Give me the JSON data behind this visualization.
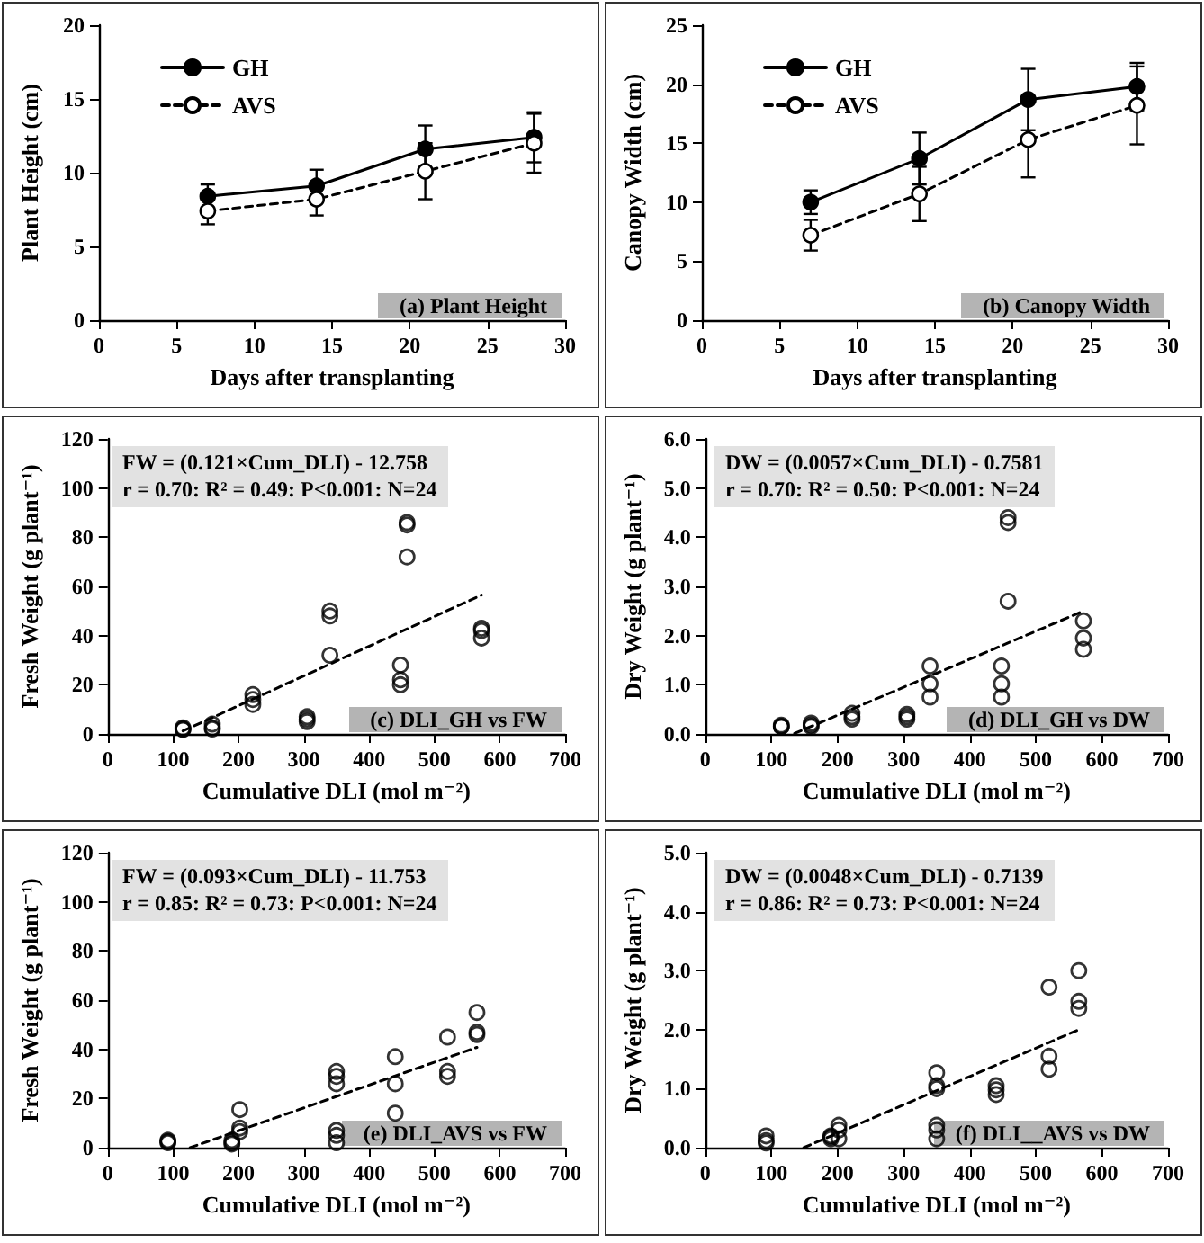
{
  "chart_data": [
    {
      "type": "line",
      "xlabel": "Days after transplanting",
      "ylabel": "Plant Height (cm)",
      "marker": "circle",
      "legend": "top left",
      "xlim": [
        0,
        30
      ],
      "xticks": [
        0,
        5,
        10,
        15,
        20,
        25,
        30
      ],
      "ylim": [
        0,
        20
      ],
      "yticks": [
        0,
        5,
        10,
        15,
        20
      ],
      "annotations": [
        "(a) Plant Height"
      ],
      "series": [
        {
          "name": "GH",
          "color": "#000000",
          "line_style": "solid",
          "x": [
            7,
            14,
            21,
            28
          ],
          "values": [
            8.4,
            9.1,
            11.6,
            12.4
          ],
          "errors": [
            0.8,
            1.1,
            1.6,
            1.7
          ]
        },
        {
          "name": "AVS",
          "color": "#000000",
          "line_style": "dashed",
          "x": [
            7,
            14,
            21,
            28
          ],
          "values": [
            7.4,
            8.2,
            10.1,
            12.0
          ],
          "errors": [
            0.9,
            1.1,
            1.9,
            2.0
          ]
        }
      ]
    },
    {
      "type": "line",
      "xlabel": "Days after transplanting",
      "ylabel": "Canopy Width (cm)",
      "marker": "circle",
      "legend": "top left",
      "xlim": [
        0,
        30
      ],
      "xticks": [
        0,
        5,
        10,
        15,
        20,
        25,
        30
      ],
      "ylim": [
        0,
        25
      ],
      "yticks": [
        0,
        5,
        10,
        15,
        20,
        25
      ],
      "annotations": [
        "(b) Canopy Width"
      ],
      "series": [
        {
          "name": "GH",
          "color": "#000000",
          "line_style": "solid",
          "x": [
            7,
            14,
            21,
            28
          ],
          "values": [
            10.0,
            13.7,
            18.7,
            19.8
          ],
          "errors": [
            1.0,
            2.2,
            2.6,
            2.0
          ]
        },
        {
          "name": "AVS",
          "color": "#000000",
          "line_style": "dashed",
          "x": [
            7,
            14,
            21,
            28
          ],
          "values": [
            7.2,
            10.7,
            15.3,
            18.2
          ],
          "errors": [
            1.3,
            2.3,
            3.2,
            3.3
          ]
        }
      ]
    },
    {
      "type": "scatter",
      "xlabel": "Cumulative DLI (mol m⁻²)",
      "ylabel": "Fresh Weight (g plant⁻¹)",
      "marker": "circle",
      "xlim": [
        0,
        700
      ],
      "xticks": [
        0,
        100,
        200,
        300,
        400,
        500,
        600,
        700
      ],
      "ylim": [
        0,
        120
      ],
      "yticks": [
        0,
        20,
        40,
        60,
        80,
        100,
        120
      ],
      "annotations": [
        "FW = (0.121×Cum_DLI) - 12.758",
        "r = 0.70: R² = 0.49: P<0.001: N=24",
        "(c) DLI_GH vs FW"
      ],
      "series": [
        {
          "color": "#000000",
          "x": [
            115,
            115,
            115,
            160,
            160,
            160,
            222,
            222,
            222,
            305,
            305,
            305,
            340,
            340,
            340,
            448,
            448,
            448,
            458,
            458,
            458,
            572,
            572,
            572
          ],
          "values": [
            2.5,
            2,
            1.8,
            4,
            2.5,
            2,
            16,
            14,
            12,
            7,
            6,
            5,
            50,
            48,
            32,
            28,
            22,
            20,
            86,
            85,
            72,
            43,
            42,
            39
          ]
        },
        {
          "type": "line",
          "color": "#000000",
          "line_style": "dashed",
          "marker": "none",
          "x": [
            115,
            572
          ],
          "values": [
            1.2,
            56.5
          ]
        }
      ]
    },
    {
      "type": "scatter",
      "xlabel": "Cumulative DLI (mol m⁻²)",
      "ylabel": "Dry Weight (g plant⁻¹)",
      "marker": "circle",
      "xlim": [
        0,
        700
      ],
      "xticks": [
        0,
        100,
        200,
        300,
        400,
        500,
        600,
        700
      ],
      "ylim": [
        0,
        6
      ],
      "yticks": [
        {
          "value": 0,
          "label": "0.0"
        },
        {
          "value": 1,
          "label": "1.0"
        },
        {
          "value": 2,
          "label": "2.0"
        },
        {
          "value": 3,
          "label": "3.0"
        },
        {
          "value": 4,
          "label": "4.0"
        },
        {
          "value": 5,
          "label": "5.0"
        },
        {
          "value": 6,
          "label": "6.0"
        }
      ],
      "annotations": [
        "DW = (0.0057×Cum_DLI) - 0.7581",
        "r = 0.70: R² = 0.50: P<0.001: N=24",
        "(d) DLI_GH vs DW"
      ],
      "series": [
        {
          "color": "#000000",
          "x": [
            115,
            115,
            115,
            160,
            160,
            160,
            222,
            222,
            222,
            305,
            305,
            305,
            340,
            340,
            340,
            448,
            448,
            448,
            458,
            458,
            458,
            572,
            572,
            572
          ],
          "values": [
            0.18,
            0.15,
            0.15,
            0.22,
            0.18,
            0.15,
            0.42,
            0.35,
            0.3,
            0.4,
            0.35,
            0.3,
            1.38,
            1.02,
            0.75,
            1.38,
            1.02,
            0.75,
            4.4,
            4.3,
            2.7,
            2.3,
            1.95,
            1.72
          ]
        },
        {
          "type": "line",
          "color": "#000000",
          "line_style": "dashed",
          "marker": "none",
          "x": [
            135,
            572
          ],
          "values": [
            0.01,
            2.5
          ]
        }
      ]
    },
    {
      "type": "scatter",
      "xlabel": "Cumulative DLI (mol m⁻²)",
      "ylabel": "Fresh Weight (g plant⁻¹)",
      "marker": "circle",
      "xlim": [
        0,
        700
      ],
      "xticks": [
        0,
        100,
        200,
        300,
        400,
        500,
        600,
        700
      ],
      "ylim": [
        0,
        120
      ],
      "yticks": [
        0,
        20,
        40,
        60,
        80,
        100,
        120
      ],
      "annotations": [
        "FW = (0.093×Cum_DLI) - 11.753",
        "r = 0.85: R² = 0.73: P<0.001: N=24",
        "(e) DLI_AVS vs FW"
      ],
      "series": [
        {
          "color": "#000000",
          "x": [
            92,
            92,
            92,
            190,
            190,
            190,
            202,
            202,
            202,
            350,
            350,
            350,
            350,
            350,
            350,
            440,
            440,
            440,
            520,
            520,
            520,
            565,
            565,
            565
          ],
          "values": [
            3,
            2.5,
            2,
            3,
            2,
            1.5,
            15.5,
            8,
            6.5,
            31,
            29,
            26,
            7,
            5,
            2,
            37,
            26,
            14,
            45,
            31,
            29,
            55,
            47,
            46
          ]
        },
        {
          "type": "line",
          "color": "#000000",
          "line_style": "dashed",
          "marker": "none",
          "x": [
            126,
            565
          ],
          "values": [
            0,
            40.8
          ]
        }
      ]
    },
    {
      "type": "scatter",
      "xlabel": "Cumulative DLI (mol m⁻²)",
      "ylabel": "Dry Weight (g plant⁻¹)",
      "marker": "circle",
      "xlim": [
        0,
        700
      ],
      "xticks": [
        0,
        100,
        200,
        300,
        400,
        500,
        600,
        700
      ],
      "ylim": [
        0,
        5
      ],
      "yticks": [
        {
          "value": 0,
          "label": "0.0"
        },
        {
          "value": 1,
          "label": "1.0"
        },
        {
          "value": 2,
          "label": "2.0"
        },
        {
          "value": 3,
          "label": "3.0"
        },
        {
          "value": 4,
          "label": "4.0"
        },
        {
          "value": 5,
          "label": "5.0"
        }
      ],
      "annotations": [
        "DW = (0.0048×Cum_DLI) - 0.7139",
        "r = 0.86: R² = 0.73: P<0.001: N=24",
        "(f) DLI__AVS vs DW"
      ],
      "series": [
        {
          "color": "#000000",
          "x": [
            92,
            92,
            92,
            190,
            190,
            190,
            202,
            202,
            202,
            350,
            350,
            350,
            350,
            350,
            350,
            440,
            440,
            440,
            520,
            520,
            520,
            565,
            565,
            565
          ],
          "values": [
            0.2,
            0.12,
            0.08,
            0.2,
            0.18,
            0.15,
            0.38,
            0.3,
            0.15,
            1.27,
            1.05,
            1.0,
            0.38,
            0.3,
            0.15,
            1.05,
            0.98,
            0.9,
            2.72,
            1.55,
            1.33,
            3.0,
            2.48,
            2.36
          ]
        },
        {
          "type": "line",
          "color": "#000000",
          "line_style": "dashed",
          "marker": "none",
          "x": [
            149,
            565
          ],
          "values": [
            0,
            2.0
          ]
        }
      ]
    }
  ]
}
